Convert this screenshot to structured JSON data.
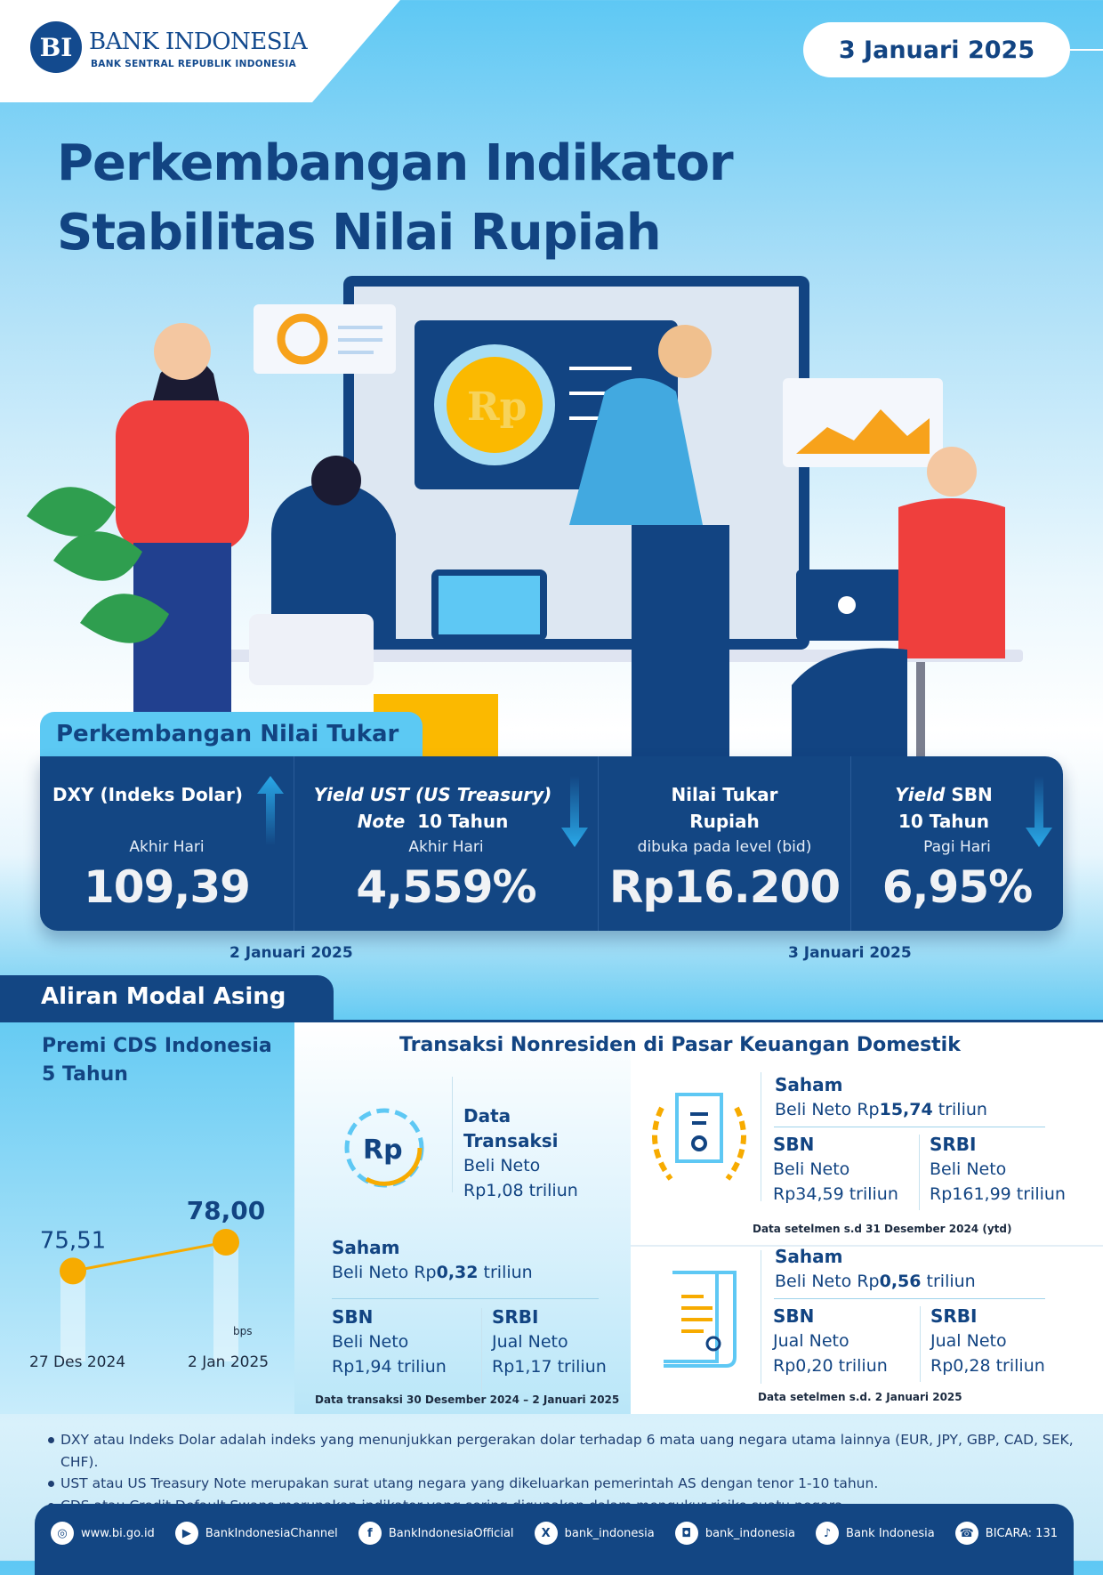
{
  "header": {
    "logo_mark": "BI",
    "bank_name": "BANK INDONESIA",
    "bank_subtitle": "BANK SENTRAL REPUBLIK INDONESIA",
    "date": "3 Januari 2025"
  },
  "title": {
    "line1": "Perkembangan Indikator",
    "line2": "Stabilitas Nilai Rupiah"
  },
  "illustration": {
    "coin_label": "Rp"
  },
  "nilai_tukar": {
    "section_title": "Perkembangan Nilai Tukar",
    "items": [
      {
        "head1": "DXY (Indeks Dolar)",
        "head2": "",
        "sub": "Akhir Hari",
        "value": "109,39",
        "trend": "up"
      },
      {
        "head1_italic": "Yield UST (US Treasury)",
        "head2_italic": "Note",
        "head2": "10 Tahun",
        "sub": "Akhir Hari",
        "value": "4,559%",
        "trend": "down"
      },
      {
        "head1": "Nilai Tukar",
        "head2": "Rupiah",
        "sub": "dibuka pada level (bid)",
        "value": "Rp16.200"
      },
      {
        "head1_italic": "Yield",
        "head1": "SBN",
        "head2": "10 Tahun",
        "sub": "Pagi Hari",
        "value": "6,95%",
        "trend": "down"
      }
    ],
    "date_left": "2 Januari 2025",
    "date_right": "3 Januari 2025",
    "colors": {
      "box": "#134683",
      "arrow": "#29a8e8"
    }
  },
  "aliran": {
    "section_title": "Aliran Modal Asing",
    "cds": {
      "title1": "Premi CDS Indonesia",
      "title2": "5 Tahun",
      "unit": "bps"
    },
    "transaksi_title": "Transaksi Nonresiden di Pasar Keuangan Domestik",
    "mingguan": {
      "data_label1": "Data",
      "data_label2": "Transaksi",
      "total_dir": "Beli Neto",
      "total_value": "Rp1,08 triliun",
      "saham_label": "Saham",
      "saham_dir": "Beli Neto Rp",
      "saham_value": "0,32",
      "saham_unit": "triliun",
      "sbn_label": "SBN",
      "sbn_dir": "Beli Neto",
      "sbn_value": "Rp1,94 triliun",
      "srbi_label": "SRBI",
      "srbi_dir": "Jual Neto",
      "srbi_value": "Rp1,17 triliun",
      "footnote": "Data transaksi 30 Desember 2024 – 2 Januari 2025"
    },
    "ytd": {
      "saham_label": "Saham",
      "saham_dir": "Beli Neto Rp",
      "saham_value": "15,74",
      "saham_unit": "triliun",
      "sbn_label": "SBN",
      "sbn_dir": "Beli Neto",
      "sbn_value": "Rp34,59 triliun",
      "srbi_label": "SRBI",
      "srbi_dir": "Beli Neto",
      "srbi_value": "Rp161,99 triliun",
      "footnote": "Data setelmen s.d 31 Desember 2024 (ytd)"
    },
    "setelmen": {
      "saham_label": "Saham",
      "saham_dir": "Beli Neto Rp",
      "saham_value": "0,56",
      "saham_unit": "triliun",
      "sbn_label": "SBN",
      "sbn_dir": "Jual Neto",
      "sbn_value": "Rp0,20 triliun",
      "srbi_label": "SRBI",
      "srbi_dir": "Jual Neto",
      "srbi_value": "Rp0,28 triliun",
      "footnote": "Data setelmen s.d. 2 Januari 2025"
    }
  },
  "chart_data": {
    "type": "line",
    "title": "Premi CDS Indonesia 5 Tahun",
    "categories": [
      "27 Des 2024",
      "2 Jan 2025"
    ],
    "values": [
      75.51,
      78.0
    ],
    "data_labels": [
      "75,51",
      "78,00"
    ],
    "ylabel": "bps",
    "grid": false,
    "color": "#f7ab00"
  },
  "notes": [
    "DXY atau Indeks Dolar adalah indeks yang menunjukkan pergerakan dolar terhadap 6 mata uang negara utama lainnya (EUR, JPY, GBP, CAD, SEK, CHF).",
    "UST atau US Treasury Note merupakan surat utang negara yang dikeluarkan  pemerintah AS dengan tenor 1-10 tahun.",
    "CDS atau Credit Default Swaps merupakan indikator  yang sering digunakan dalam mengukur risiko suatu negara."
  ],
  "footer": [
    {
      "icon": "globe-icon",
      "glyph": "◎",
      "label": "www.bi.go.id"
    },
    {
      "icon": "youtube-icon",
      "glyph": "▶",
      "label": "BankIndonesiaChannel"
    },
    {
      "icon": "facebook-icon",
      "glyph": "f",
      "label": "BankIndonesiaOfficial"
    },
    {
      "icon": "x-icon",
      "glyph": "X",
      "label": "bank_indonesia"
    },
    {
      "icon": "instagram-icon",
      "glyph": "◘",
      "label": "bank_indonesia"
    },
    {
      "icon": "tiktok-icon",
      "glyph": "♪",
      "label": "Bank Indonesia"
    },
    {
      "icon": "bicara-icon",
      "glyph": "☎",
      "label": "BICARA: 131"
    }
  ]
}
